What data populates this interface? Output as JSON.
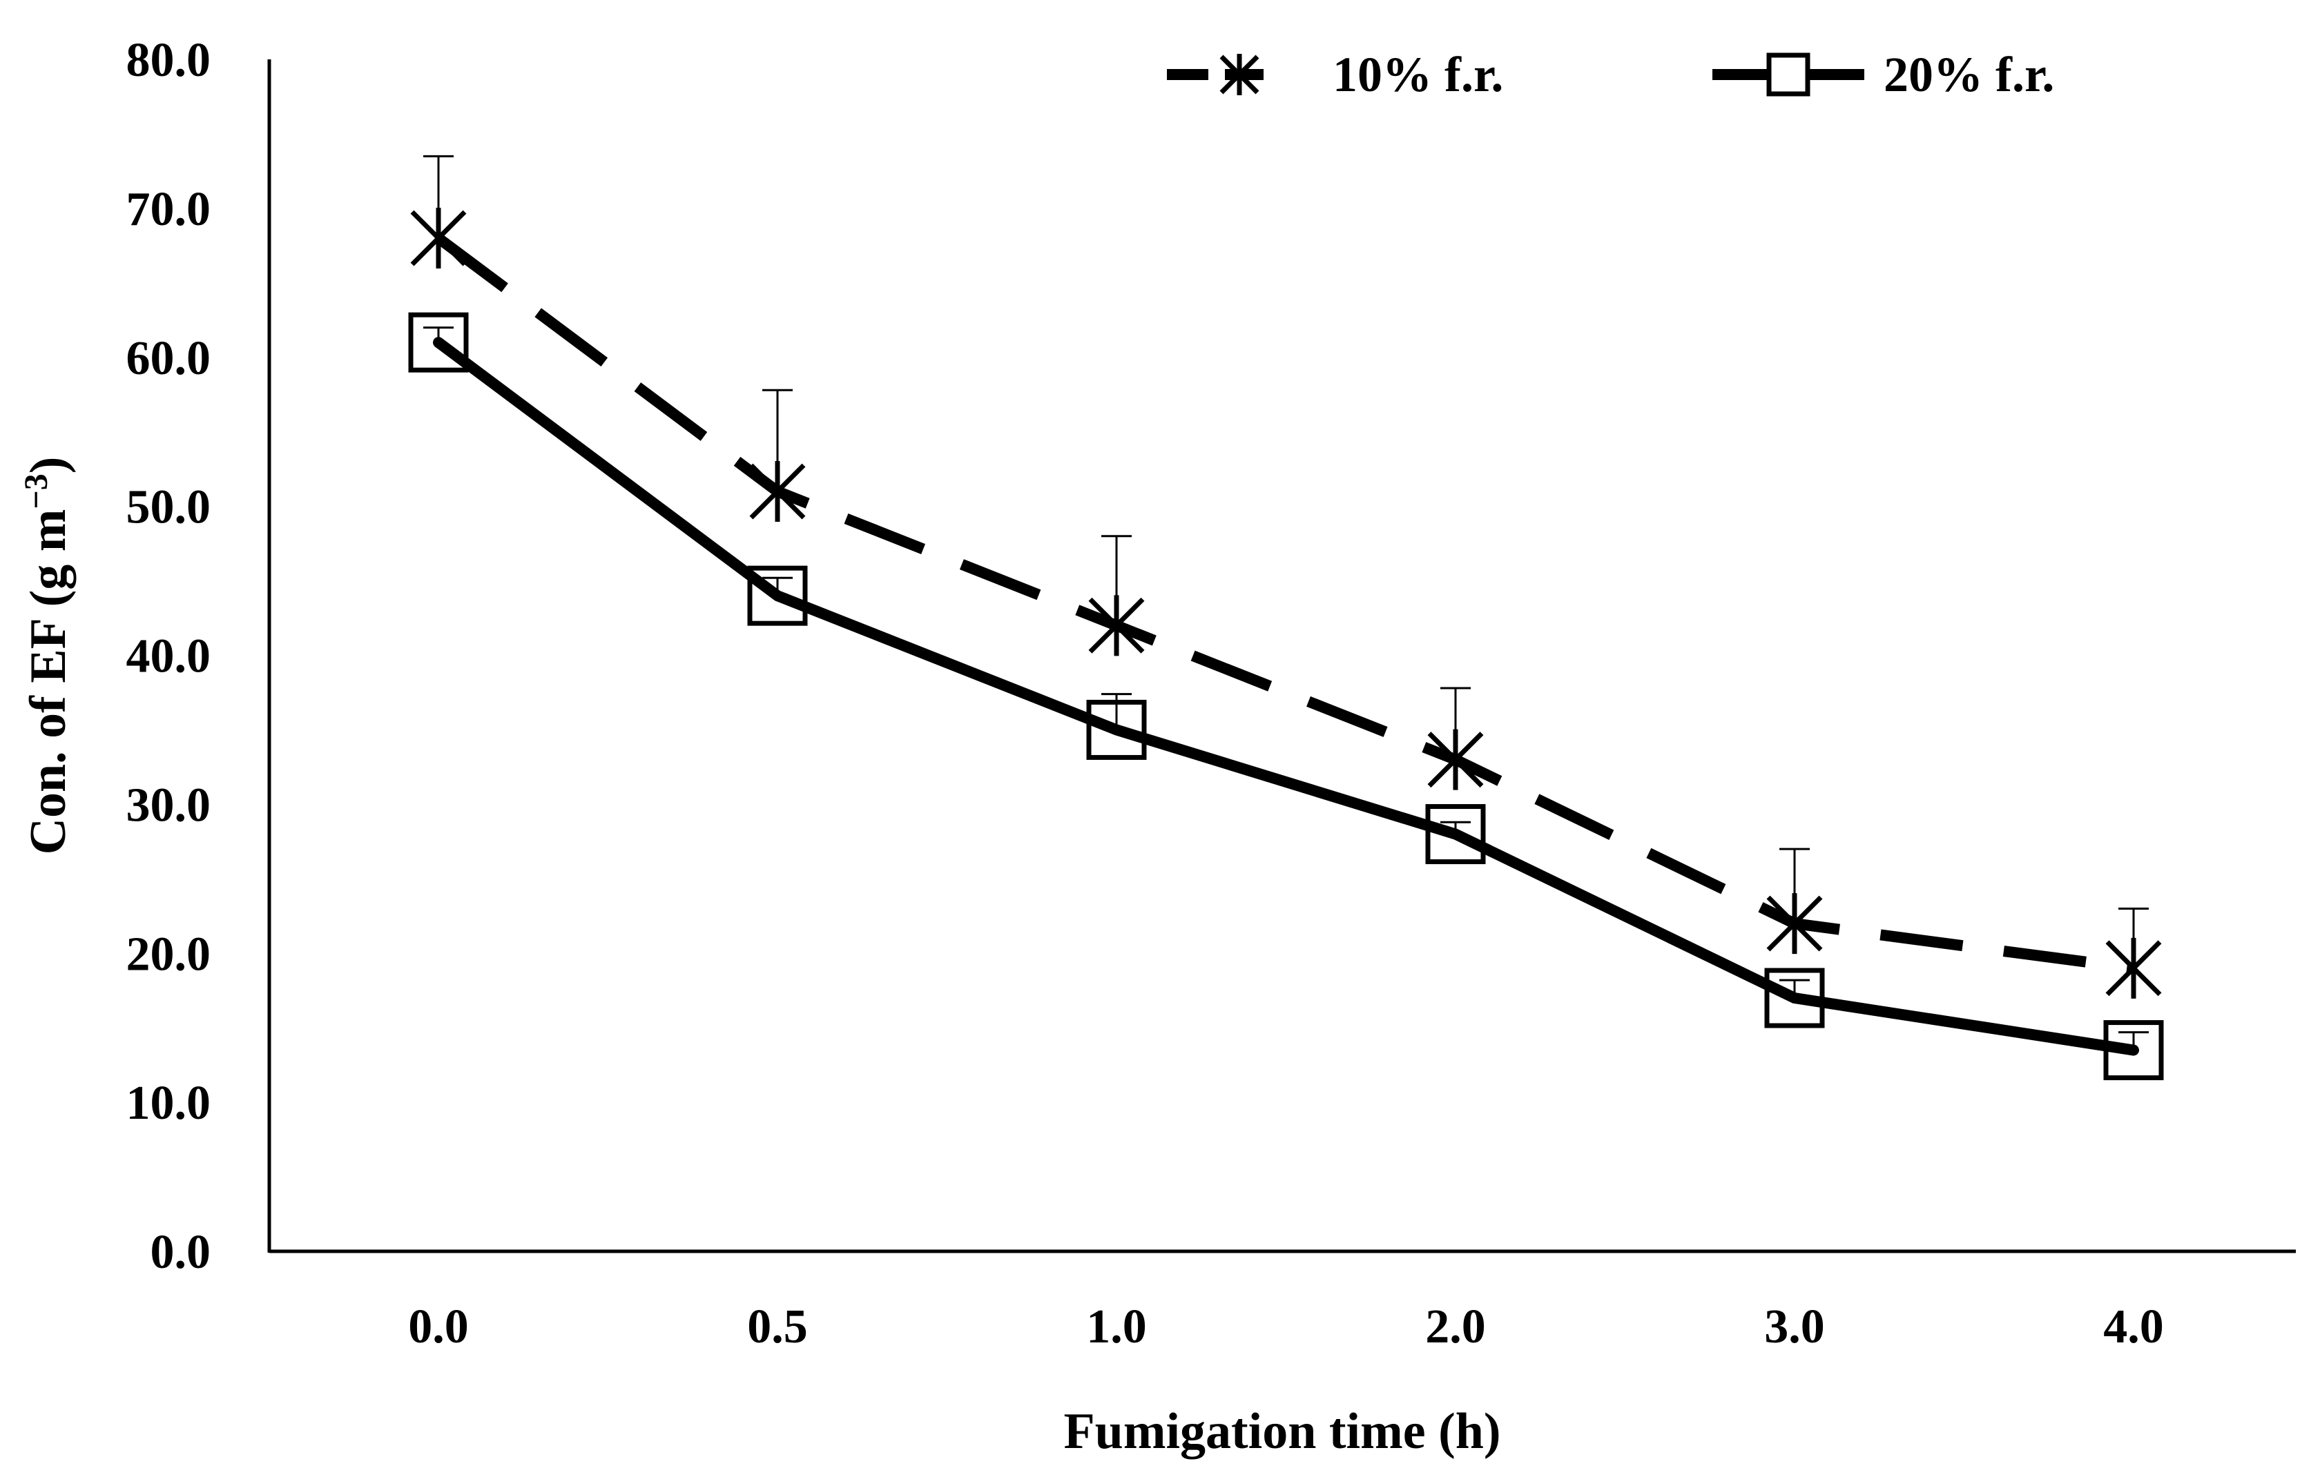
{
  "chart_data": {
    "type": "line",
    "title": "",
    "xlabel": "Fumigation time (h)",
    "ylabel": "Con. of EF (g m",
    "ylabel_unit_sup": "−3",
    "ylabel_close": ")",
    "categories": [
      "0.0",
      "0.5",
      "1.0",
      "2.0",
      "3.0",
      "4.0"
    ],
    "y_ticks": [
      "0.0",
      "10.0",
      "20.0",
      "30.0",
      "40.0",
      "50.0",
      "60.0",
      "70.0",
      "80.0"
    ],
    "ylim": [
      0,
      80
    ],
    "grid": false,
    "legend_position": "top-right",
    "series": [
      {
        "name": "10% f.r.",
        "line_style": "dashed",
        "marker": "asterisk-x",
        "color": "#000000",
        "values": [
          68.0,
          51.0,
          42.0,
          33.0,
          22.0,
          19.0
        ],
        "error_plus": [
          5.5,
          6.8,
          6.0,
          4.8,
          5.0,
          4.0
        ]
      },
      {
        "name": "20% f.r.",
        "line_style": "solid",
        "marker": "square",
        "color": "#000000",
        "values": [
          61.0,
          44.0,
          35.0,
          28.0,
          17.0,
          13.5
        ],
        "error_plus": [
          1.0,
          1.2,
          2.4,
          0.8,
          1.2,
          1.2
        ]
      }
    ]
  }
}
